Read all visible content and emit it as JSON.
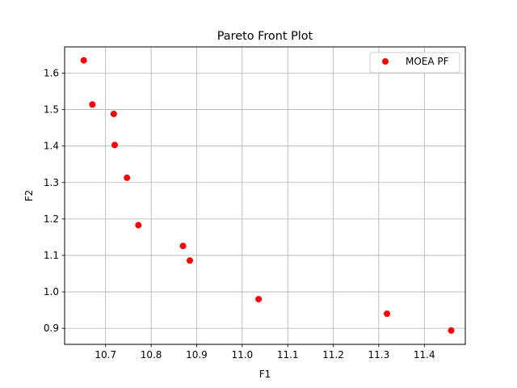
{
  "chart_data": {
    "type": "scatter",
    "title": "Pareto Front Plot",
    "xlabel": "F1",
    "ylabel": "F2",
    "xlim": [
      10.61,
      11.49
    ],
    "ylim": [
      0.856,
      1.672
    ],
    "x_ticks": [
      "10.7",
      "10.8",
      "10.9",
      "11.0",
      "11.1",
      "11.2",
      "11.3",
      "11.4"
    ],
    "y_ticks": [
      "0.9",
      "1.0",
      "1.1",
      "1.2",
      "1.3",
      "1.4",
      "1.5",
      "1.6"
    ],
    "grid": true,
    "legend_position": "top-right",
    "series": [
      {
        "name": "MOEA PF",
        "color": "#ff0000",
        "marker": "circle",
        "points": [
          {
            "x": 10.652,
            "y": 1.635
          },
          {
            "x": 10.671,
            "y": 1.514
          },
          {
            "x": 10.718,
            "y": 1.488
          },
          {
            "x": 10.72,
            "y": 1.403
          },
          {
            "x": 10.747,
            "y": 1.313
          },
          {
            "x": 10.772,
            "y": 1.183
          },
          {
            "x": 10.87,
            "y": 1.126
          },
          {
            "x": 10.885,
            "y": 1.086
          },
          {
            "x": 11.036,
            "y": 0.98
          },
          {
            "x": 11.318,
            "y": 0.94
          },
          {
            "x": 11.459,
            "y": 0.894
          }
        ]
      }
    ]
  }
}
